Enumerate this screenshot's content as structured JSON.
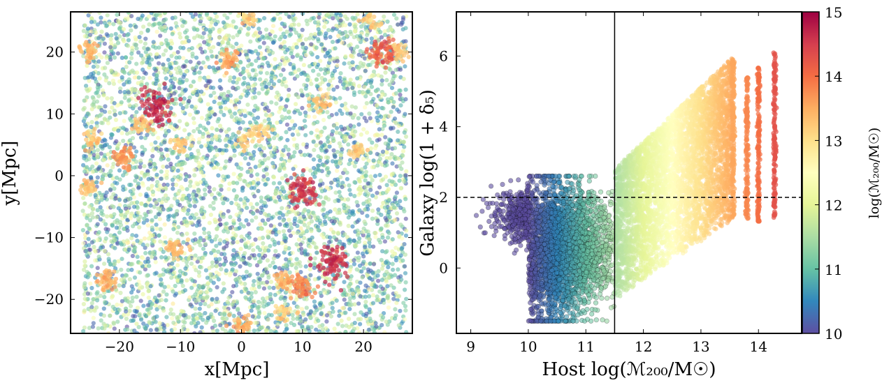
{
  "chart_data": [
    {
      "type": "scatter",
      "title": "",
      "xlabel": "x[Mpc]",
      "ylabel": "y[Mpc]",
      "xlim": [
        -28,
        28
      ],
      "ylim": [
        -25.5,
        26.5
      ],
      "xticks": [
        -20,
        -10,
        0,
        10,
        20
      ],
      "yticks": [
        -20,
        -10,
        0,
        10,
        20
      ],
      "xtick_labels": [
        "−20",
        "−10",
        "0",
        "10",
        "20"
      ],
      "ytick_labels": [
        "−20",
        "−10",
        "0",
        "10",
        "20"
      ],
      "color_by": "host log(M200/Msun)",
      "field_extent": [
        -26,
        27
      ],
      "clusters": [
        {
          "x": -14,
          "y": 11,
          "mass": 14.7
        },
        {
          "x": 10,
          "y": -2.5,
          "mass": 14.5
        },
        {
          "x": 15,
          "y": -14,
          "mass": 14.6
        },
        {
          "x": -2,
          "y": 18.5,
          "mass": 13.6
        },
        {
          "x": -19.5,
          "y": 3,
          "mass": 13.7
        },
        {
          "x": -22,
          "y": -17,
          "mass": 13.5
        },
        {
          "x": -25,
          "y": 20,
          "mass": 13.4
        },
        {
          "x": 23,
          "y": 20,
          "mass": 14.2
        },
        {
          "x": 26,
          "y": 20,
          "mass": 13.3
        },
        {
          "x": -24.5,
          "y": 6,
          "mass": 13.3
        },
        {
          "x": -25,
          "y": -2,
          "mass": 13.3
        },
        {
          "x": 0,
          "y": -24,
          "mass": 13.5
        },
        {
          "x": 7,
          "y": -17,
          "mass": 13.4
        },
        {
          "x": 10,
          "y": -18,
          "mass": 13.8
        },
        {
          "x": -11,
          "y": -12,
          "mass": 13.4
        },
        {
          "x": 7,
          "y": -22,
          "mass": 13.2
        },
        {
          "x": 0.5,
          "y": 6,
          "mass": 13.2
        },
        {
          "x": -10,
          "y": 5,
          "mass": 13.2
        },
        {
          "x": 13,
          "y": 12,
          "mass": 13.3
        },
        {
          "x": 21,
          "y": 25,
          "mass": 13.2
        },
        {
          "x": 1,
          "y": 25.5,
          "mass": 13.2
        },
        {
          "x": -16.5,
          "y": 8,
          "mass": 13.3
        },
        {
          "x": 3,
          "y": 7,
          "mass": 13.2
        },
        {
          "x": 19,
          "y": 4,
          "mass": 13.2
        }
      ]
    },
    {
      "type": "scatter",
      "title": "",
      "xlabel": "Host log(ℳ₂₀₀/M☉)",
      "ylabel": "Galaxy log(1 + δ₅)",
      "xlim": [
        8.75,
        14.75
      ],
      "ylim": [
        -1.85,
        7.25
      ],
      "xticks": [
        9,
        10,
        11,
        12,
        13,
        14
      ],
      "yticks": [
        0,
        2,
        4,
        6
      ],
      "xtick_labels": [
        "9",
        "10",
        "11",
        "12",
        "13",
        "14"
      ],
      "ytick_labels": [
        "0",
        "2",
        "4",
        "6"
      ],
      "vline_x": 11.5,
      "hline_y": 2,
      "low_mass_cloud": {
        "x_range": [
          9,
          11.5
        ],
        "y_center": 0.5,
        "y_spread": 0.9
      },
      "halo_columns": [
        {
          "x": 13.56,
          "y_min": 1.4,
          "y_max": 5.9
        },
        {
          "x": 13.8,
          "y_min": 1.4,
          "y_max": 5.4
        },
        {
          "x": 14.0,
          "y_min": 1.3,
          "y_max": 5.7
        },
        {
          "x": 14.28,
          "y_min": 1.4,
          "y_max": 6.1
        }
      ],
      "colorbar": {
        "label": "log(ℳ₂₀₀/M☉)",
        "range": [
          10,
          15
        ],
        "ticks": [
          "10",
          "11",
          "12",
          "13",
          "14",
          "15"
        ],
        "colormap": "Spectral_r"
      }
    }
  ]
}
